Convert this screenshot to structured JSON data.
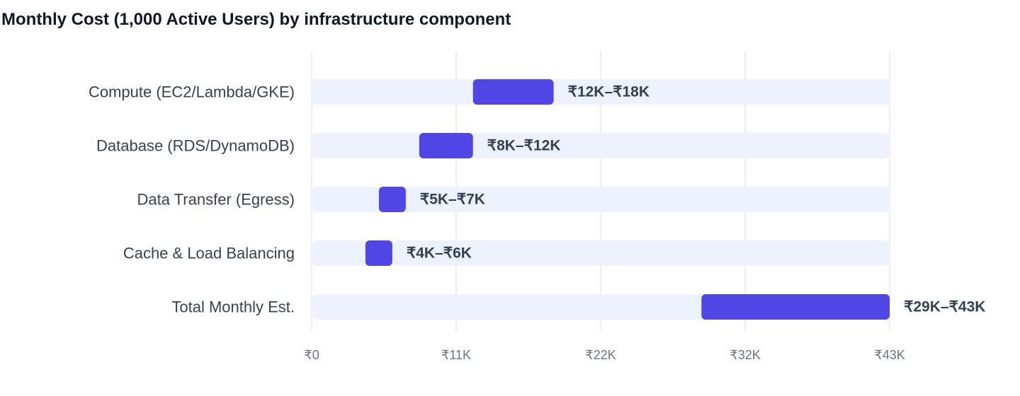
{
  "chart_data": {
    "type": "bar",
    "orientation": "horizontal",
    "style": "range",
    "title": "Monthly Cost (1,000 Active Users) by infrastructure component",
    "xlabel": "",
    "ylabel": "",
    "categories": [
      "Compute (EC2/Lambda/GKE)",
      "Database (RDS/DynamoDB)",
      "Data Transfer (Egress)",
      "Cache & Load Balancing",
      "Total Monthly Est."
    ],
    "series": [
      {
        "ranges": [
          [
            12,
            18
          ],
          [
            8,
            12
          ],
          [
            5,
            7
          ],
          [
            4,
            6
          ],
          [
            29,
            43
          ]
        ],
        "labels": [
          "₹12K–₹18K",
          "₹8K–₹12K",
          "₹5K–₹7K",
          "₹4K–₹6K",
          "₹29K–₹43K"
        ]
      }
    ],
    "xlim": [
      0,
      43
    ],
    "ticks": [
      0,
      10.75,
      21.5,
      32.25,
      43
    ],
    "tick_labels": [
      "₹0",
      "₹11K",
      "₹22K",
      "₹32K",
      "₹43K"
    ],
    "grid": true,
    "colors": {
      "bar": "#4f46e5",
      "track": "#eef2ff",
      "grid": "#e5e7eb"
    }
  }
}
